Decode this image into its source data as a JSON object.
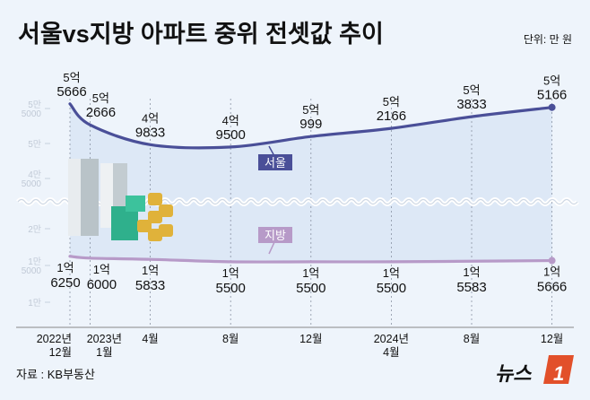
{
  "header": {
    "title": "서울vs지방 아파트 중위 전셋값 추이",
    "unit": "단위: 만 원"
  },
  "footer": {
    "source": "자료 : KB부동산",
    "logo": "뉴스1"
  },
  "colors": {
    "seoul": "#4a4f98",
    "regional": "#b79ac8",
    "fill": "#dde8f6",
    "background": "#eef4fb",
    "logo_accent": "#e2502a"
  },
  "chart_data": {
    "type": "line",
    "title": "서울vs지방 아파트 중위 전셋값 추이",
    "unit": "단위: 만 원",
    "axis_break": true,
    "y_ticks_upper": [
      {
        "value": 55000,
        "label": [
          "5만",
          "5000"
        ]
      },
      {
        "value": 50000,
        "label": [
          "5만"
        ]
      },
      {
        "value": 45000,
        "label": [
          "4만",
          "5000"
        ]
      }
    ],
    "y_ticks_lower": [
      {
        "value": 20000,
        "label": [
          "2만"
        ]
      },
      {
        "value": 15000,
        "label": [
          "1만",
          "5000"
        ]
      },
      {
        "value": 10000,
        "label": [
          "1만"
        ]
      }
    ],
    "x_labels": [
      [
        "2022년",
        "12월"
      ],
      [
        "2023년",
        "1월"
      ],
      [
        "4월"
      ],
      [
        "8월"
      ],
      [
        "12월"
      ],
      [
        "2024년",
        "4월"
      ],
      [
        "8월"
      ],
      [
        "12월"
      ]
    ],
    "x_month_index": [
      0,
      1,
      4,
      8,
      12,
      16,
      20,
      24
    ],
    "series": [
      {
        "name": "서울",
        "values": [
          55666,
          52666,
          49833,
          49500,
          50999,
          52166,
          53833,
          55166
        ],
        "labels": [
          [
            "5억",
            "5666"
          ],
          [
            "5억",
            "2666"
          ],
          [
            "4억",
            "9833"
          ],
          [
            "4억",
            "9500"
          ],
          [
            "5억",
            "999"
          ],
          [
            "5억",
            "2166"
          ],
          [
            "5억",
            "3833"
          ],
          [
            "5억",
            "5166"
          ]
        ]
      },
      {
        "name": "지방",
        "values": [
          16250,
          16000,
          15833,
          15500,
          15500,
          15500,
          15583,
          15666
        ],
        "labels": [
          [
            "1억",
            "6250"
          ],
          [
            "1억",
            "6000"
          ],
          [
            "1억",
            "5833"
          ],
          [
            "1억",
            "5500"
          ],
          [
            "1억",
            "5500"
          ],
          [
            "1억",
            "5500"
          ],
          [
            "1억",
            "5583"
          ],
          [
            "1억",
            "5666"
          ]
        ]
      }
    ]
  }
}
